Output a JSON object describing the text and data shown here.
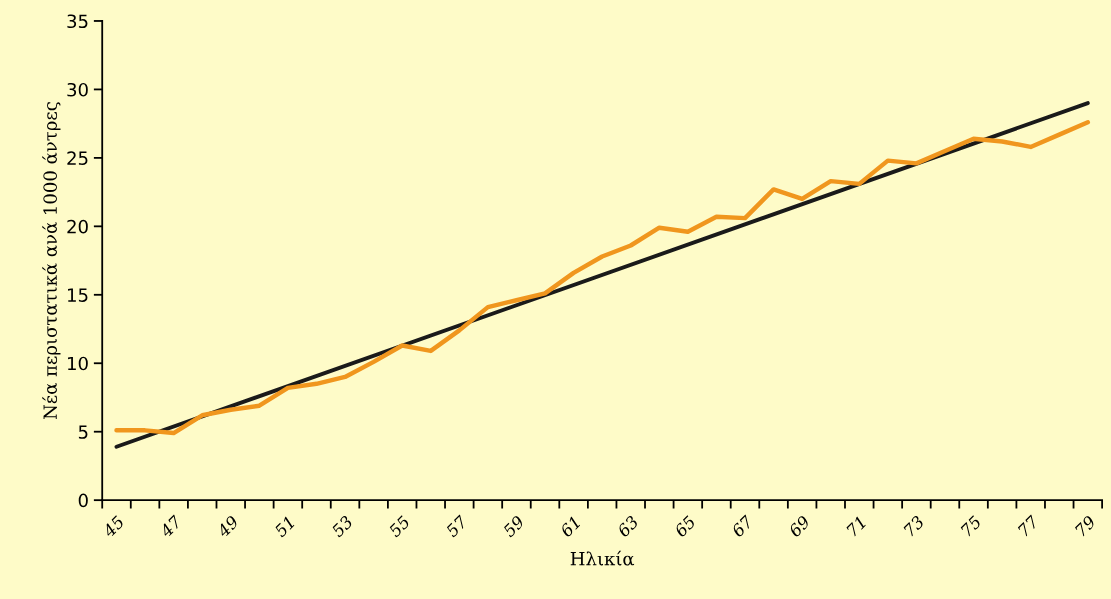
{
  "chart_data": {
    "type": "line",
    "xlabel": "Ηλικία",
    "ylabel": "Νέα περιστατικά ανά 1000 άντρες",
    "categories": [
      "45",
      null,
      "47",
      null,
      "49",
      null,
      "51",
      null,
      "53",
      null,
      "55",
      null,
      "57",
      null,
      "59",
      null,
      "61",
      null,
      "63",
      null,
      "65",
      null,
      "67",
      null,
      "69",
      null,
      "71",
      null,
      "73",
      null,
      "75",
      null,
      "77",
      null,
      "79"
    ],
    "series": [
      {
        "color": "#f0961e",
        "values": [
          5.1,
          5.1,
          4.9,
          6.2,
          6.6,
          6.9,
          8.2,
          8.5,
          9.0,
          10.1,
          11.3,
          10.9,
          12.4,
          14.1,
          14.6,
          15.1,
          16.6,
          17.8,
          18.6,
          19.9,
          19.6,
          20.7,
          20.6,
          22.7,
          22.0,
          23.3,
          23.1,
          24.8,
          24.6,
          25.5,
          26.4,
          26.2,
          25.8,
          26.7,
          27.6
        ]
      },
      {
        "type": "line",
        "color": "#1a1a1a",
        "x": [
          "45",
          "79"
        ],
        "values": [
          3.9,
          29.0
        ]
      }
    ],
    "ylim": [
      0,
      35
    ],
    "yticks": [
      0,
      5,
      10,
      15,
      20,
      25,
      30,
      35
    ],
    "grid": false,
    "marker": "none",
    "line_style": "solid"
  }
}
